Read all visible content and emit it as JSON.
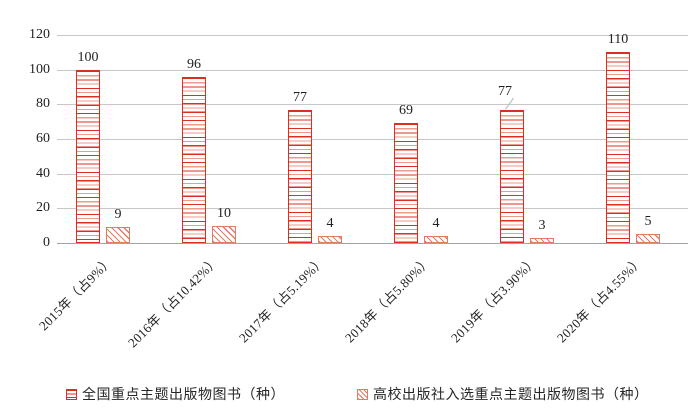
{
  "chart_data": {
    "type": "bar",
    "title": "",
    "xlabel": "",
    "ylabel": "",
    "categories": [
      "2015年（占9%）",
      "2016年（占10.42%）",
      "2017年（占5.19%）",
      "2018年（占5.80%）",
      "2019年（占3.90%）",
      "2020年（占4.55%）"
    ],
    "series": [
      {
        "name": "全国重点主题出版物图书（种）",
        "values": [
          100,
          96,
          77,
          69,
          77,
          110
        ],
        "pattern": "horizontal-stripes",
        "color": "#dd2e21"
      },
      {
        "name": "高校出版社入选重点主题出版物图书（种）",
        "values": [
          9,
          10,
          4,
          4,
          3,
          5
        ],
        "pattern": "diagonal-stripes",
        "color": "#e57a63"
      }
    ],
    "y_axis": {
      "ticks": [
        0,
        20,
        40,
        60,
        80,
        100,
        120
      ],
      "min": 0,
      "max": 120
    },
    "grid": true,
    "data_labels": true,
    "legend_position": "bottom",
    "colors": {
      "gridline": "#c7c7c7",
      "axis_line": "#a3a3a3",
      "text": "#1f1f1f",
      "leader_line": "#a9bfb9"
    }
  }
}
